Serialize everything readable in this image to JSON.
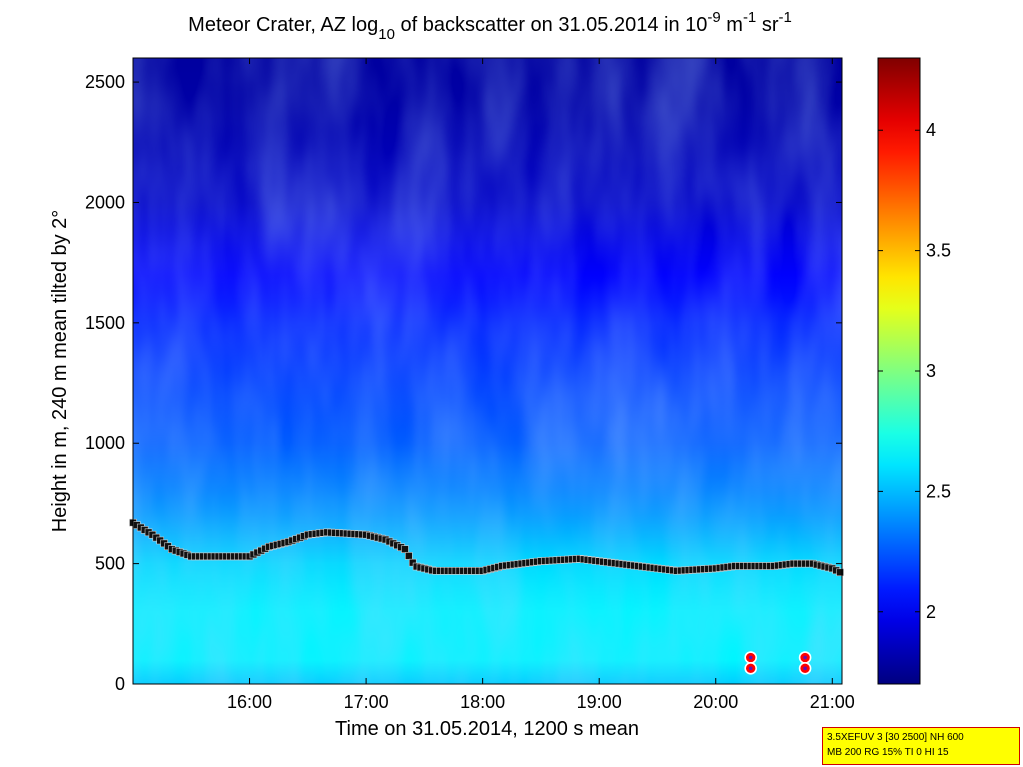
{
  "chart_data": {
    "type": "heatmap",
    "title": {
      "prefix": "Meteor Crater, AZ log",
      "sub": "10",
      "middle": " of backscatter on 31.05.2014 in 10",
      "exp1": "-9",
      "unit1": " m",
      "exp2": "-1",
      "unit2": " sr",
      "exp3": "-1"
    },
    "xlabel": "Time on 31.05.2014, 1200 s mean",
    "ylabel": "Height in m, 240 m mean tilted by 2°",
    "x_range": [
      "15:00",
      "21:05"
    ],
    "x_ticks": [
      "16:00",
      "17:00",
      "18:00",
      "19:00",
      "20:00",
      "21:00"
    ],
    "y_range": [
      0,
      2600
    ],
    "y_ticks": [
      0,
      500,
      1000,
      1500,
      2000,
      2500
    ],
    "colorbar": {
      "range": [
        1.7,
        4.3
      ],
      "ticks": [
        "2",
        "2.5",
        "3",
        "3.5",
        "4"
      ],
      "colormap": "jet"
    },
    "backscatter_profile": {
      "heights": [
        0,
        100,
        200,
        300,
        400,
        500,
        600,
        700,
        800,
        900,
        1000,
        1100,
        1200,
        1300,
        1400,
        1500,
        1600,
        1700,
        1800,
        1900,
        2000,
        2200,
        2400,
        2600
      ],
      "log10_values": [
        2.55,
        2.65,
        2.65,
        2.65,
        2.62,
        2.58,
        2.5,
        2.42,
        2.36,
        2.31,
        2.26,
        2.23,
        2.2,
        2.17,
        2.14,
        2.11,
        2.06,
        2.02,
        1.98,
        1.93,
        1.88,
        1.84,
        1.8,
        1.78
      ]
    },
    "mixing_layer_height": {
      "name": "",
      "marker": "square",
      "color": "#000000",
      "times": [
        "15:00",
        "15:10",
        "15:20",
        "15:30",
        "16:00",
        "16:10",
        "16:20",
        "16:30",
        "16:40",
        "17:00",
        "17:10",
        "17:20",
        "17:25",
        "17:35",
        "17:50",
        "18:00",
        "18:10",
        "18:30",
        "18:50",
        "19:00",
        "19:20",
        "19:40",
        "20:00",
        "20:10",
        "20:30",
        "20:40",
        "20:50",
        "21:00",
        "21:05"
      ],
      "heights": [
        670,
        620,
        560,
        530,
        530,
        570,
        590,
        620,
        630,
        620,
        600,
        560,
        490,
        470,
        470,
        470,
        490,
        510,
        520,
        510,
        490,
        470,
        480,
        490,
        490,
        500,
        500,
        480,
        460
      ]
    },
    "red_points": {
      "color": "#ff0000",
      "points": [
        {
          "time": "20:18",
          "height": 110
        },
        {
          "time": "20:18",
          "height": 65
        },
        {
          "time": "20:46",
          "height": 110
        },
        {
          "time": "20:46",
          "height": 65
        }
      ]
    }
  },
  "info_box": {
    "line1": "3.5XEFUV 3 [30 2500] NH 600",
    "line2": "MB 200 RG 15% TI 0 HI 15"
  }
}
